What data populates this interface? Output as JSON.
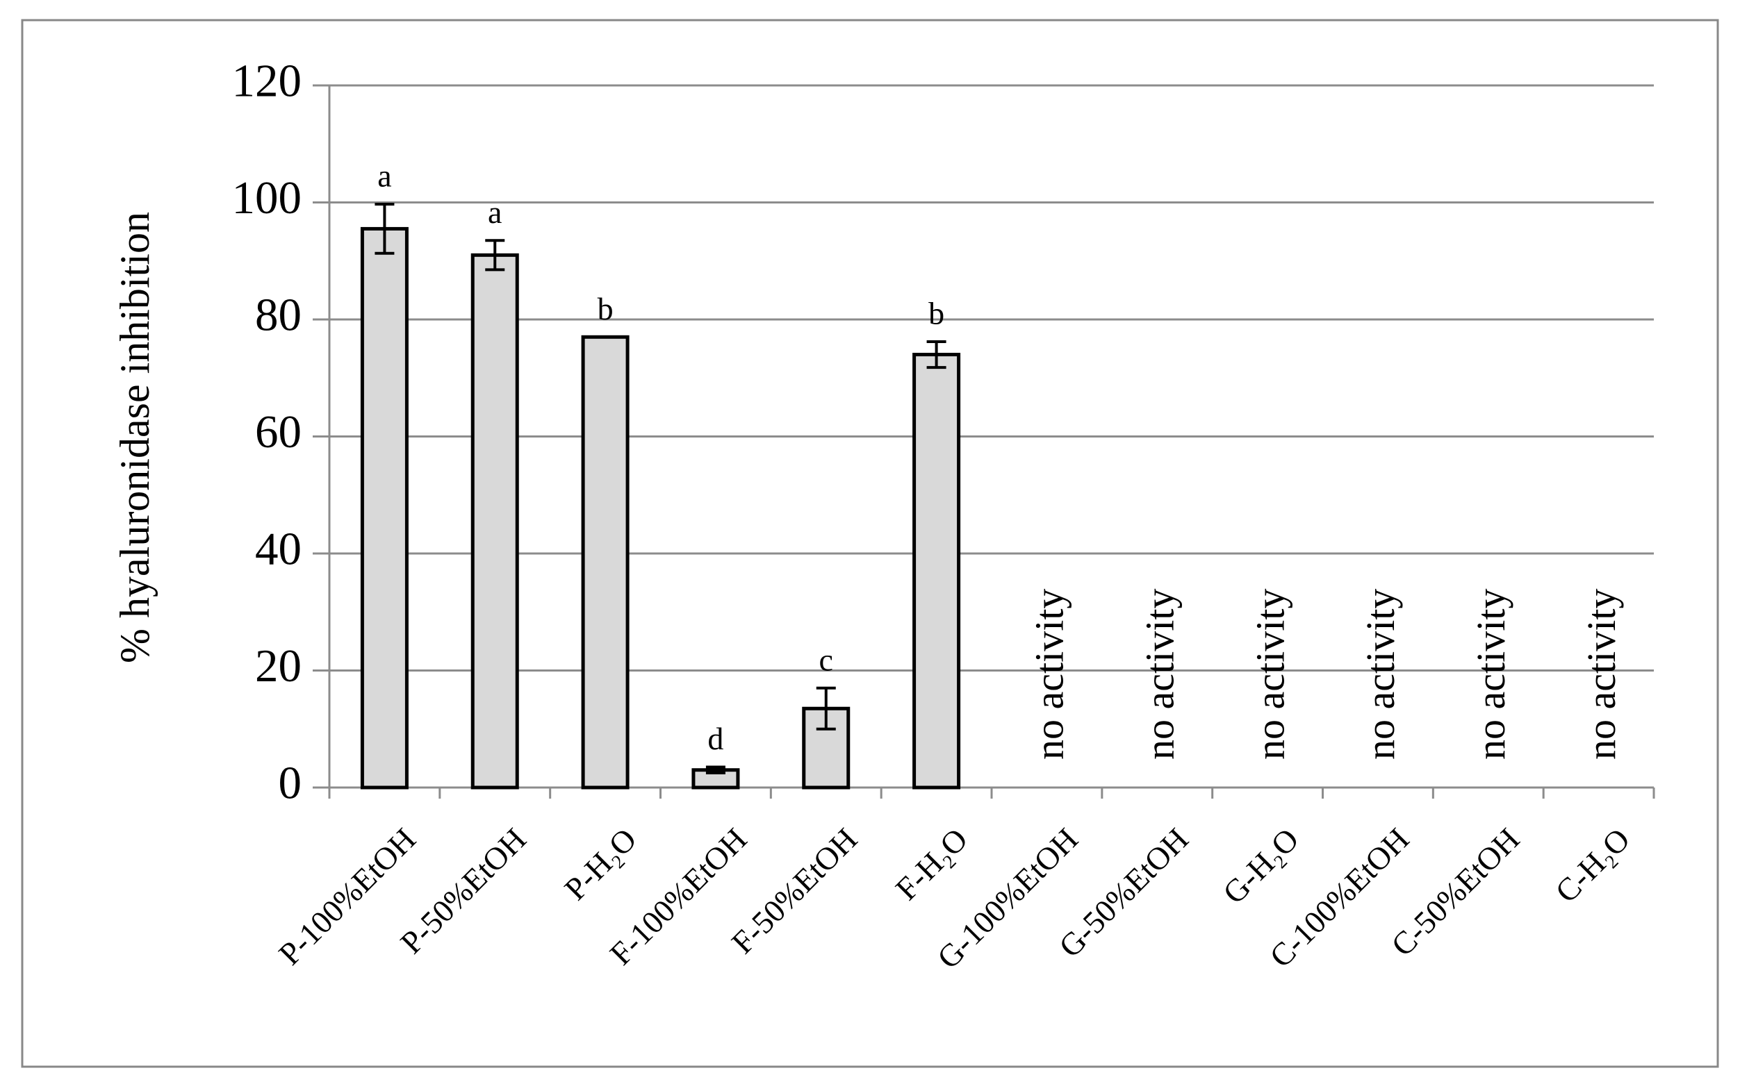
{
  "chart_data": {
    "type": "bar",
    "y_label": "% hyaluronidase inhibition",
    "categories": [
      "P-100%EtOH",
      "P-50%EtOH",
      "P-H₂O",
      "F-100%EtOH",
      "F-50%EtOH",
      "F-H₂O",
      "G-100%EtOH",
      "G-50%EtOH",
      "G-H₂O",
      "C-100%EtOH",
      "C-50%EtOH",
      "C-H₂O"
    ],
    "values": [
      95.5,
      91,
      77,
      3,
      13.5,
      74,
      null,
      null,
      null,
      null,
      null,
      null
    ],
    "errors": [
      4.2,
      2.5,
      0,
      0.5,
      3.5,
      2.2,
      null,
      null,
      null,
      null,
      null,
      null
    ],
    "letters": [
      "a",
      "a",
      "b",
      "d",
      "c",
      "b",
      null,
      null,
      null,
      null,
      null,
      null
    ],
    "annotations": [
      null,
      null,
      null,
      null,
      null,
      null,
      "no activity",
      "no activity",
      "no activity",
      "no activity",
      "no activity",
      "no activity"
    ],
    "color": "#d9d9d9",
    "ylim": [
      0,
      120
    ],
    "yticks": [
      0,
      20,
      40,
      60,
      80,
      100,
      120
    ],
    "grid": true
  }
}
